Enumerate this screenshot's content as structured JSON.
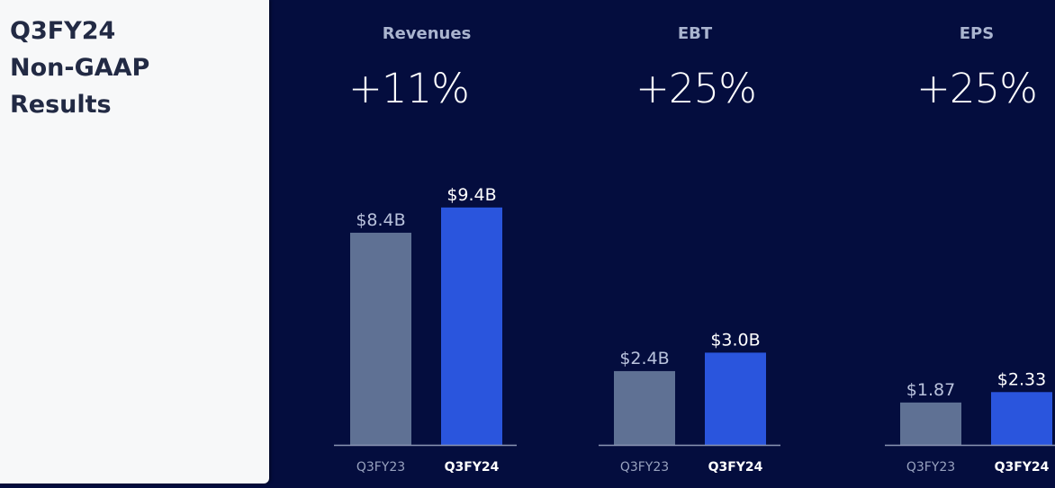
{
  "left_panel": {
    "title_lines": [
      "Q3FY24",
      "Non-GAAP",
      "Results"
    ]
  },
  "colors": {
    "background": "#040d3e",
    "panel": "#f7f8f9",
    "title_text": "#222a44",
    "bar_prior": "#5f7194",
    "bar_current": "#2a55dd",
    "axis": "#8b95b3"
  },
  "chart_data": [
    {
      "type": "bar",
      "title": "Revenues",
      "growth": "+11%",
      "categories": [
        "Q3FY23",
        "Q3FY24"
      ],
      "values": [
        8.4,
        9.4
      ],
      "data_labels": [
        "$8.4B",
        "$9.4B"
      ],
      "unit": "$B",
      "ylim": [
        0,
        9.4
      ],
      "grid": false
    },
    {
      "type": "bar",
      "title": "EBT",
      "growth": "+25%",
      "categories": [
        "Q3FY23",
        "Q3FY24"
      ],
      "values": [
        2.4,
        3.0
      ],
      "data_labels": [
        "$2.4B",
        "$3.0B"
      ],
      "unit": "$B",
      "grid": false
    },
    {
      "type": "bar",
      "title": "EPS",
      "growth": "+25%",
      "categories": [
        "Q3FY23",
        "Q3FY24"
      ],
      "values": [
        1.87,
        2.33
      ],
      "data_labels": [
        "$1.87",
        "$2.33"
      ],
      "unit": "$",
      "grid": false
    }
  ]
}
